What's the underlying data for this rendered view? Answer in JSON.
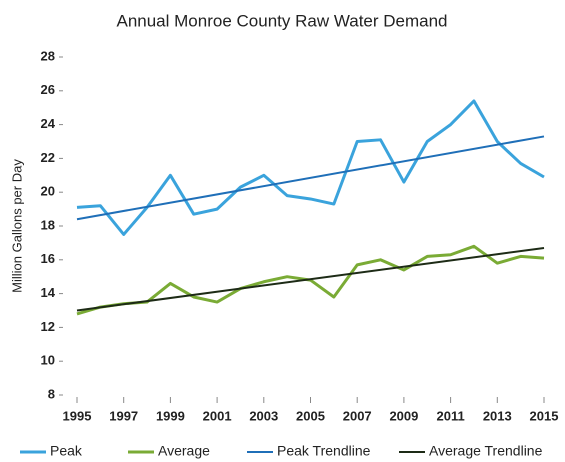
{
  "chart_data": {
    "type": "line",
    "title": "Annual Monroe County Raw Water Demand",
    "y_label": "Million Gallons per Day",
    "x": [
      1995,
      1996,
      1997,
      1998,
      1999,
      2000,
      2001,
      2002,
      2003,
      2004,
      2005,
      2006,
      2007,
      2008,
      2009,
      2010,
      2011,
      2012,
      2013,
      2014,
      2015
    ],
    "series": [
      {
        "name": "Peak",
        "color": "#3aa3dc",
        "width": 3,
        "values": [
          19.1,
          19.2,
          17.5,
          19.1,
          21.0,
          18.7,
          19.0,
          20.3,
          21.0,
          19.8,
          19.6,
          19.3,
          23.0,
          23.1,
          20.6,
          23.0,
          24.0,
          25.4,
          23.0,
          21.7,
          20.9
        ]
      },
      {
        "name": "Average",
        "color": "#7aab35",
        "width": 3,
        "values": [
          12.8,
          13.2,
          13.4,
          13.5,
          14.6,
          13.8,
          13.5,
          14.3,
          14.7,
          15.0,
          14.8,
          13.8,
          15.7,
          16.0,
          15.4,
          16.2,
          16.3,
          16.8,
          15.8,
          16.2,
          16.1
        ]
      },
      {
        "name": "Peak Trendline",
        "color": "#1f6fb8",
        "width": 2,
        "x": [
          1995,
          2015
        ],
        "values": [
          18.4,
          23.3
        ]
      },
      {
        "name": "Average Trendline",
        "color": "#1d2b16",
        "width": 2,
        "x": [
          1995,
          2015
        ],
        "values": [
          13.0,
          16.7
        ]
      }
    ],
    "xlim": [
      1995,
      2015
    ],
    "xticks": [
      1995,
      1997,
      1999,
      2001,
      2003,
      2005,
      2007,
      2009,
      2011,
      2013,
      2015
    ],
    "ylim": [
      8,
      28
    ],
    "yticks": [
      8,
      10,
      12,
      14,
      16,
      18,
      20,
      22,
      24,
      26,
      28
    ],
    "grid": false,
    "legend": "bottom"
  }
}
